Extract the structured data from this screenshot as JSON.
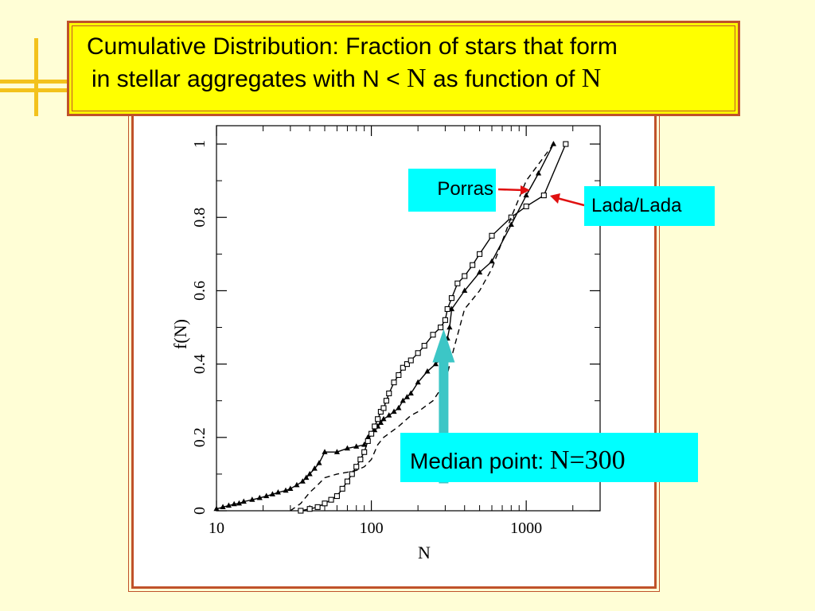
{
  "title": {
    "line1": "Cumulative Distribution: Fraction of stars that form",
    "line2_pre": "in stellar aggregates with N < ",
    "line2_n": "N",
    "line2_mid": " as function of ",
    "line2_end": "N"
  },
  "callouts": {
    "porras": "Porras",
    "lada": "Lada/Lada",
    "median_prefix": "Median point: ",
    "median_value": "N=300"
  },
  "colors": {
    "background": "#fffed6",
    "title_fill": "#ffff00",
    "border": "#c0522a",
    "callout_fill": "#00ffff",
    "arrow": "#3cc6c6",
    "pointer_arrow": "#e01010",
    "deco": "#f3c21c"
  },
  "chart_data": {
    "type": "line",
    "xlabel": "N",
    "ylabel": "f(N)",
    "xscale": "log",
    "xlim": [
      10,
      3000
    ],
    "ylim": [
      0,
      1.05
    ],
    "xticks": [
      10,
      100,
      1000
    ],
    "xtick_labels": [
      "10",
      "100",
      "1000"
    ],
    "yticks": [
      0,
      0.2,
      0.4,
      0.6,
      0.8,
      1
    ],
    "ytick_labels": [
      "0",
      "0.2",
      "0.4",
      "0.6",
      "0.8",
      "1"
    ],
    "grid": false,
    "series": [
      {
        "name": "Porras",
        "marker": "triangle",
        "style": "solid",
        "x": [
          10,
          11,
          12,
          13,
          14,
          15,
          17,
          19,
          21,
          23,
          25,
          28,
          30,
          33,
          36,
          38,
          40,
          43,
          46,
          50,
          60,
          70,
          80,
          90,
          95,
          100,
          105,
          110,
          115,
          120,
          130,
          140,
          150,
          160,
          170,
          180,
          200,
          230,
          260,
          290,
          300,
          310,
          320,
          330,
          400,
          500,
          600,
          800,
          1000,
          1200,
          1500
        ],
        "y": [
          0.005,
          0.01,
          0.014,
          0.018,
          0.02,
          0.025,
          0.03,
          0.035,
          0.04,
          0.045,
          0.05,
          0.055,
          0.06,
          0.07,
          0.08,
          0.09,
          0.1,
          0.115,
          0.13,
          0.16,
          0.16,
          0.17,
          0.175,
          0.18,
          0.2,
          0.21,
          0.22,
          0.23,
          0.24,
          0.25,
          0.26,
          0.27,
          0.28,
          0.3,
          0.31,
          0.32,
          0.35,
          0.38,
          0.4,
          0.42,
          0.44,
          0.47,
          0.5,
          0.55,
          0.6,
          0.65,
          0.68,
          0.78,
          0.86,
          0.92,
          1.0
        ]
      },
      {
        "name": "Lada/Lada",
        "marker": "square",
        "style": "solid",
        "x": [
          35,
          40,
          45,
          50,
          55,
          60,
          65,
          70,
          75,
          80,
          85,
          90,
          95,
          100,
          105,
          110,
          115,
          120,
          125,
          130,
          140,
          150,
          160,
          170,
          180,
          200,
          220,
          250,
          280,
          300,
          310,
          330,
          360,
          400,
          450,
          500,
          600,
          800,
          1000,
          1300,
          1800
        ],
        "y": [
          0.0,
          0.005,
          0.01,
          0.02,
          0.03,
          0.04,
          0.06,
          0.08,
          0.1,
          0.12,
          0.14,
          0.16,
          0.19,
          0.21,
          0.23,
          0.25,
          0.27,
          0.28,
          0.3,
          0.32,
          0.35,
          0.37,
          0.39,
          0.4,
          0.41,
          0.43,
          0.45,
          0.48,
          0.5,
          0.52,
          0.55,
          0.58,
          0.62,
          0.64,
          0.67,
          0.7,
          0.75,
          0.8,
          0.83,
          0.86,
          1.0
        ]
      },
      {
        "name": "",
        "marker": "none",
        "style": "dashed",
        "x": [
          30,
          35,
          40,
          45,
          50,
          60,
          70,
          80,
          90,
          100,
          110,
          120,
          150,
          180,
          200,
          250,
          300,
          330,
          400,
          500,
          600,
          800,
          1000,
          1500
        ],
        "y": [
          0.0,
          0.02,
          0.05,
          0.07,
          0.09,
          0.1,
          0.105,
          0.11,
          0.12,
          0.14,
          0.18,
          0.2,
          0.23,
          0.26,
          0.27,
          0.3,
          0.35,
          0.42,
          0.55,
          0.6,
          0.66,
          0.8,
          0.9,
          1.0
        ]
      }
    ],
    "annotations": [
      {
        "text": "Median point: N=300",
        "x": 300,
        "y": 0.5
      }
    ]
  }
}
